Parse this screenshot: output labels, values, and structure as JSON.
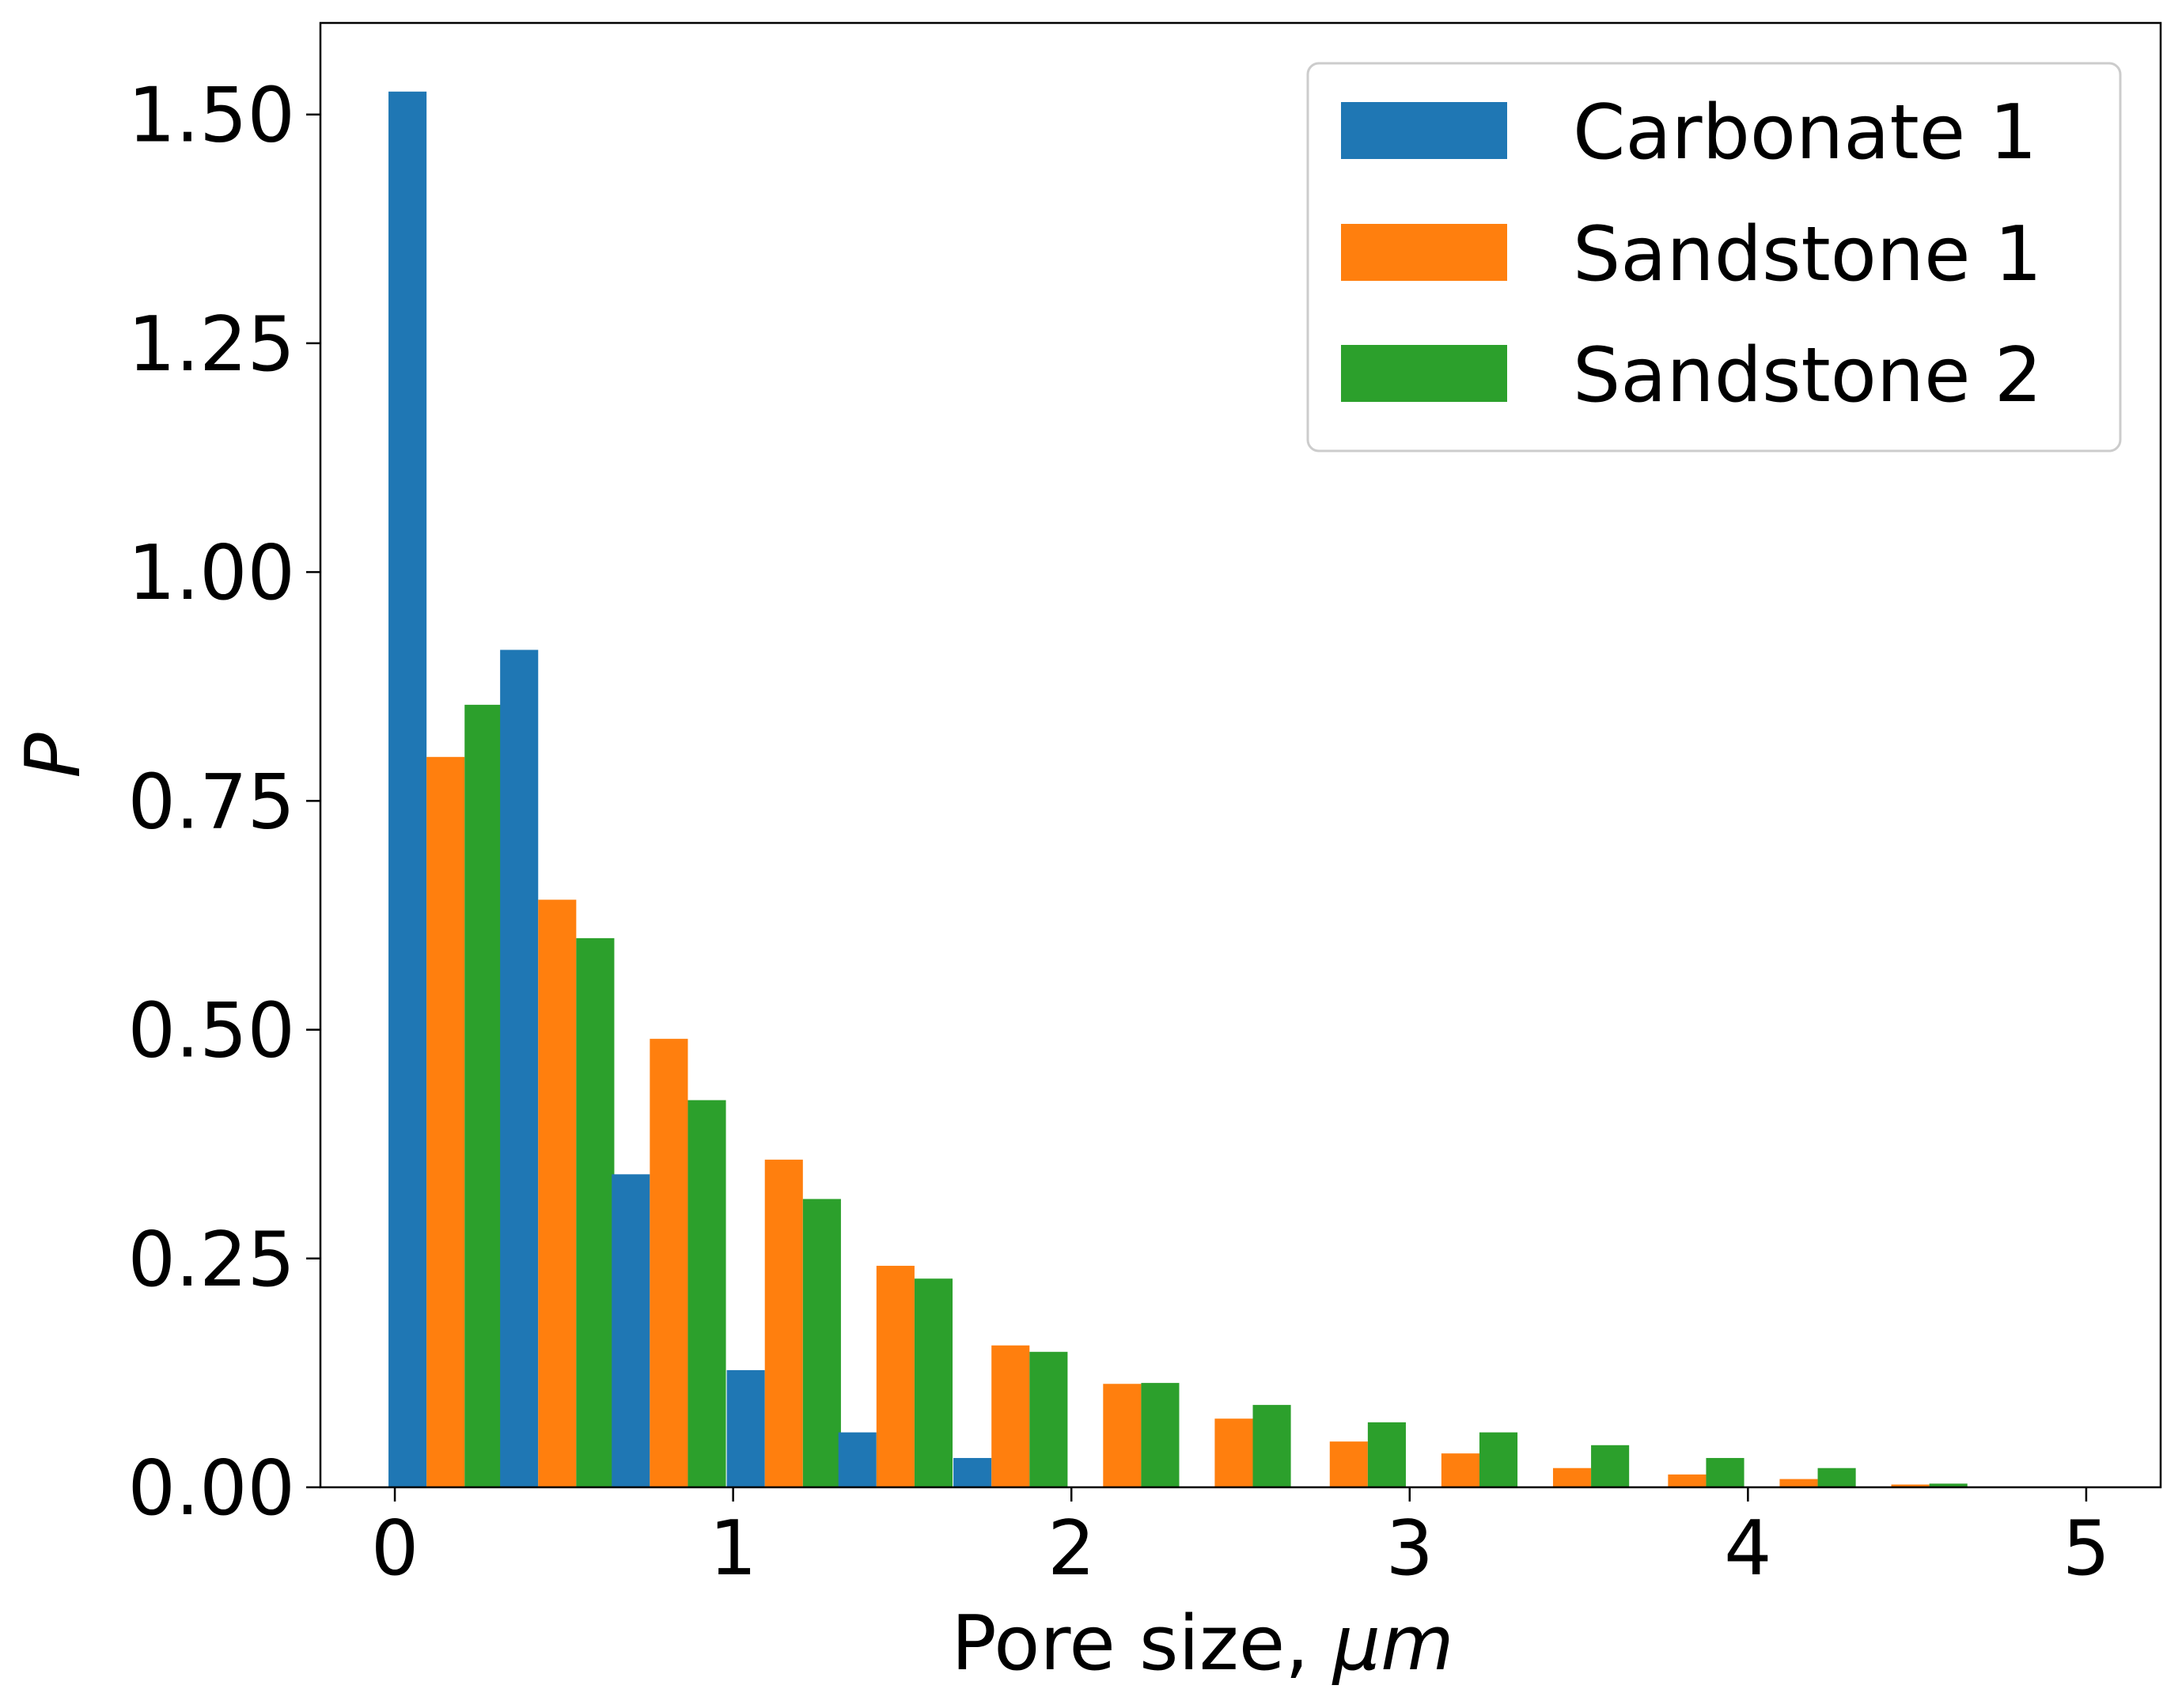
{
  "chart_data": {
    "type": "bar",
    "x": [
      0.15,
      0.48,
      0.81,
      1.15,
      1.48,
      1.82,
      2.15,
      2.48,
      2.82,
      3.15,
      3.48,
      3.82,
      4.15,
      4.48,
      4.82
    ],
    "series": [
      {
        "name": "Carbonate 1",
        "color": "#1f77b4",
        "values": [
          1.525,
          0.915,
          0.342,
          0.128,
          0.06,
          0.032,
          0,
          0,
          0,
          0,
          0,
          0,
          0,
          0,
          0
        ]
      },
      {
        "name": "Sandstone 1",
        "color": "#ff7f0e",
        "values": [
          0.798,
          0.642,
          0.49,
          0.358,
          0.242,
          0.155,
          0.113,
          0.075,
          0.05,
          0.037,
          0.021,
          0.014,
          0.009,
          0.003,
          0
        ]
      },
      {
        "name": "Sandstone 2",
        "color": "#2ca02c",
        "values": [
          0.855,
          0.6,
          0.423,
          0.315,
          0.228,
          0.148,
          0.114,
          0.09,
          0.071,
          0.06,
          0.046,
          0.032,
          0.021,
          0.004,
          0
        ]
      }
    ],
    "xlabel": "Pore size, ",
    "xlabel_unit": "μm",
    "ylabel": "P",
    "xlim": [
      -0.22,
      5.22
    ],
    "ylim": [
      0,
      1.6
    ],
    "xticks": [
      0,
      1,
      2,
      3,
      4,
      5
    ],
    "xtick_labels": [
      "0",
      "1",
      "2",
      "3",
      "4",
      "5"
    ],
    "yticks": [
      0,
      0.25,
      0.5,
      0.75,
      1.0,
      1.25,
      1.5
    ],
    "ytick_labels": [
      "0.00",
      "0.25",
      "0.50",
      "0.75",
      "1.00",
      "1.25",
      "1.50"
    ],
    "grid": false,
    "legend_position": "upper right"
  }
}
